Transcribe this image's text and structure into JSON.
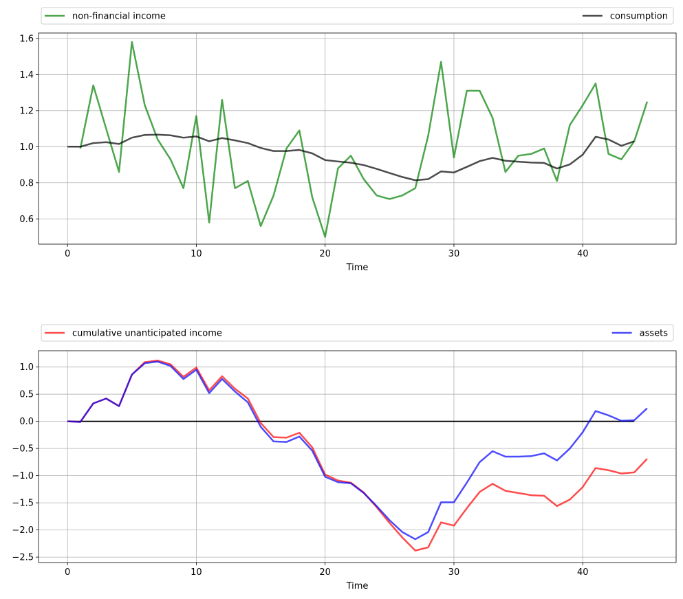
{
  "chart_data": [
    {
      "type": "line",
      "xlabel": "Time",
      "ylabel": "",
      "xlim": [
        -2.25,
        47.25
      ],
      "ylim": [
        0.46,
        1.63
      ],
      "xticks": [
        0,
        10,
        20,
        30,
        40
      ],
      "yticks": [
        0.6,
        0.8,
        1.0,
        1.2,
        1.4,
        1.6
      ],
      "ytick_labels": [
        "0.6",
        "0.8",
        "1.0",
        "1.2",
        "1.4",
        "1.6"
      ],
      "grid": true,
      "legend": "above, expanded across the full width",
      "series": [
        {
          "name": "non-financial income",
          "color": "#008000",
          "x": [
            1,
            2,
            3,
            4,
            5,
            6,
            7,
            8,
            9,
            10,
            11,
            12,
            13,
            14,
            15,
            16,
            17,
            18,
            19,
            20,
            21,
            22,
            23,
            24,
            25,
            26,
            27,
            28,
            29,
            30,
            31,
            32,
            33,
            34,
            35,
            36,
            37,
            38,
            39,
            40,
            41,
            42,
            43,
            44,
            45
          ],
          "values": [
            0.99,
            1.34,
            1.1,
            0.86,
            1.58,
            1.23,
            1.04,
            0.93,
            0.77,
            1.17,
            0.58,
            1.26,
            0.77,
            0.81,
            0.56,
            0.73,
            0.99,
            1.09,
            0.72,
            0.5,
            0.88,
            0.95,
            0.82,
            0.73,
            0.71,
            0.73,
            0.77,
            1.06,
            1.47,
            0.94,
            1.31,
            1.31,
            1.16,
            0.86,
            0.95,
            0.96,
            0.99,
            0.81,
            1.12,
            1.23,
            1.35,
            0.96,
            0.93,
            1.03,
            1.25
          ]
        },
        {
          "name": "consumption",
          "color": "#000000",
          "x": [
            0,
            1,
            2,
            3,
            4,
            5,
            6,
            7,
            8,
            9,
            10,
            11,
            12,
            13,
            14,
            15,
            16,
            17,
            18,
            19,
            20,
            21,
            22,
            23,
            24,
            25,
            26,
            27,
            28,
            29,
            30,
            31,
            32,
            33,
            34,
            35,
            36,
            37,
            38,
            39,
            40,
            41,
            42,
            43,
            44
          ],
          "values": [
            1.0,
            1.0,
            1.02,
            1.025,
            1.015,
            1.05,
            1.065,
            1.067,
            1.063,
            1.05,
            1.057,
            1.03,
            1.048,
            1.035,
            1.02,
            0.993,
            0.976,
            0.976,
            0.982,
            0.963,
            0.926,
            0.918,
            0.911,
            0.898,
            0.877,
            0.854,
            0.832,
            0.814,
            0.82,
            0.863,
            0.857,
            0.888,
            0.92,
            0.938,
            0.922,
            0.917,
            0.912,
            0.91,
            0.879,
            0.902,
            0.956,
            1.055,
            1.04,
            1.005,
            1.03
          ]
        }
      ]
    },
    {
      "type": "line",
      "xlabel": "Time",
      "ylabel": "",
      "xlim": [
        -2.25,
        47.25
      ],
      "ylim": [
        -2.6,
        1.3
      ],
      "xticks": [
        0,
        10,
        20,
        30,
        40
      ],
      "yticks": [
        -2.5,
        -2.0,
        -1.5,
        -1.0,
        -0.5,
        0.0,
        0.5,
        1.0
      ],
      "ytick_labels": [
        "−2.5",
        "−2.0",
        "−1.5",
        "−1.0",
        "−0.5",
        "0.0",
        "0.5",
        "1.0"
      ],
      "grid": true,
      "legend": "above, expanded across the full width",
      "reference_line": {
        "y": 0,
        "from_x": 0,
        "to_x": 44,
        "color": "#000000"
      },
      "series": [
        {
          "name": "cumulative unanticipated income",
          "color": "#ff0000",
          "x": [
            0,
            1,
            2,
            3,
            4,
            5,
            6,
            7,
            8,
            9,
            10,
            11,
            12,
            13,
            14,
            15,
            16,
            17,
            18,
            19,
            20,
            21,
            22,
            23,
            24,
            25,
            26,
            27,
            28,
            29,
            30,
            31,
            32,
            33,
            34,
            35,
            36,
            37,
            38,
            39,
            40,
            41,
            42,
            43,
            44,
            45
          ],
          "values": [
            0.0,
            -0.01,
            0.33,
            0.42,
            0.28,
            0.86,
            1.09,
            1.12,
            1.05,
            0.82,
            0.99,
            0.57,
            0.83,
            0.6,
            0.42,
            -0.03,
            -0.29,
            -0.3,
            -0.21,
            -0.48,
            -0.98,
            -1.09,
            -1.13,
            -1.31,
            -1.58,
            -1.87,
            -2.14,
            -2.38,
            -2.32,
            -1.86,
            -1.92,
            -1.6,
            -1.3,
            -1.15,
            -1.28,
            -1.32,
            -1.36,
            -1.37,
            -1.56,
            -1.44,
            -1.21,
            -0.86,
            -0.9,
            -0.96,
            -0.94,
            -0.69
          ]
        },
        {
          "name": "assets",
          "color": "#0000ff",
          "x": [
            0,
            1,
            2,
            3,
            4,
            5,
            6,
            7,
            8,
            9,
            10,
            11,
            12,
            13,
            14,
            15,
            16,
            17,
            18,
            19,
            20,
            21,
            22,
            23,
            24,
            25,
            26,
            27,
            28,
            29,
            30,
            31,
            32,
            33,
            34,
            35,
            36,
            37,
            38,
            39,
            40,
            41,
            42,
            43,
            44,
            45
          ],
          "values": [
            0.0,
            -0.01,
            0.33,
            0.42,
            0.28,
            0.86,
            1.07,
            1.1,
            1.02,
            0.78,
            0.95,
            0.52,
            0.78,
            0.55,
            0.35,
            -0.1,
            -0.37,
            -0.38,
            -0.28,
            -0.54,
            -1.02,
            -1.12,
            -1.14,
            -1.32,
            -1.56,
            -1.82,
            -2.04,
            -2.17,
            -2.04,
            -1.49,
            -1.49,
            -1.13,
            -0.75,
            -0.55,
            -0.65,
            -0.65,
            -0.64,
            -0.59,
            -0.72,
            -0.5,
            -0.2,
            0.19,
            0.11,
            0.01,
            0.02,
            0.24
          ]
        }
      ]
    }
  ]
}
